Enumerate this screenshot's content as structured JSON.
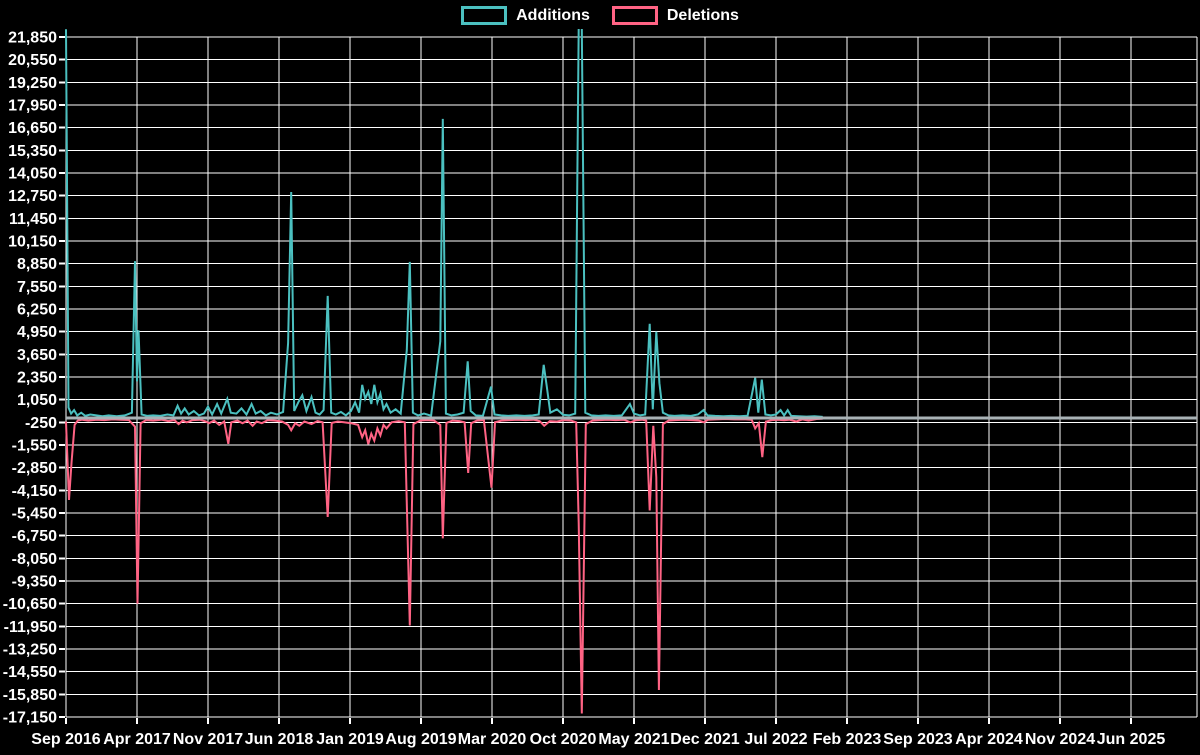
{
  "legend": {
    "position": "top",
    "items": [
      {
        "label": "Additions",
        "color": "#4BC0C0"
      },
      {
        "label": "Deletions",
        "color": "#FF6384"
      }
    ]
  },
  "chart_data": {
    "type": "line",
    "title": "",
    "xlabel": "",
    "ylabel": "",
    "background": "#000000",
    "grid_color": "#ffffff",
    "grid_on": true,
    "zero_line_color": "#a9b2b6",
    "x_axis": {
      "unit": "month",
      "tick_interval_months": 7,
      "tick_labels": [
        "Sep 2016",
        "Apr 2017",
        "Nov 2017",
        "Jun 2018",
        "Jan 2019",
        "Aug 2019",
        "Mar 2020",
        "Oct 2020",
        "May 2021",
        "Dec 2021",
        "Jul 2022",
        "Feb 2023",
        "Sep 2023",
        "Apr 2024",
        "Nov 2024",
        "Jun 2025"
      ]
    },
    "y_axis": {
      "max": 21850,
      "min": -17150,
      "step": 1300,
      "tick_labels": [
        "21,850",
        "20,550",
        "19,250",
        "17,950",
        "16,650",
        "15,350",
        "14,050",
        "12,750",
        "11,450",
        "10,150",
        "8,850",
        "7,550",
        "6,250",
        "4,950",
        "3,650",
        "2,350",
        "1,050",
        "-250",
        "-1,550",
        "-2,850",
        "-4,150",
        "-5,450",
        "-6,750",
        "-8,050",
        "-9,350",
        "-10,650",
        "-11,950",
        "-13,250",
        "-14,550",
        "-15,850",
        "-17,150"
      ]
    },
    "series": [
      {
        "name": "Deletions",
        "color": "#FF6384",
        "points": [
          [
            0,
            -200
          ],
          [
            0.3,
            -4700
          ],
          [
            0.55,
            -2500
          ],
          [
            0.85,
            -400
          ],
          [
            1.15,
            -150
          ],
          [
            1.6,
            -100
          ],
          [
            2.2,
            -150
          ],
          [
            3,
            -100
          ],
          [
            3.8,
            -120
          ],
          [
            4.6,
            -80
          ],
          [
            5.4,
            -100
          ],
          [
            6.2,
            -120
          ],
          [
            6.8,
            -500
          ],
          [
            7.05,
            -10650
          ],
          [
            7.35,
            -300
          ],
          [
            7.9,
            -120
          ],
          [
            8.6,
            -150
          ],
          [
            9.4,
            -100
          ],
          [
            10.1,
            -180
          ],
          [
            10.7,
            -120
          ],
          [
            11.1,
            -350
          ],
          [
            11.5,
            -150
          ],
          [
            11.9,
            -250
          ],
          [
            12.5,
            -120
          ],
          [
            13.2,
            -100
          ],
          [
            13.8,
            -200
          ],
          [
            14.1,
            -300
          ],
          [
            14.6,
            -150
          ],
          [
            15.1,
            -400
          ],
          [
            15.6,
            -200
          ],
          [
            16,
            -1480
          ],
          [
            16.3,
            -250
          ],
          [
            16.9,
            -150
          ],
          [
            17.4,
            -300
          ],
          [
            17.9,
            -150
          ],
          [
            18.4,
            -450
          ],
          [
            18.8,
            -200
          ],
          [
            19.3,
            -300
          ],
          [
            19.9,
            -120
          ],
          [
            20.6,
            -150
          ],
          [
            21.3,
            -200
          ],
          [
            21.9,
            -400
          ],
          [
            22.2,
            -700
          ],
          [
            22.6,
            -300
          ],
          [
            23,
            -450
          ],
          [
            23.5,
            -200
          ],
          [
            24.2,
            -350
          ],
          [
            24.8,
            -180
          ],
          [
            25.3,
            -250
          ],
          [
            25.8,
            -5680
          ],
          [
            26.2,
            -280
          ],
          [
            26.8,
            -200
          ],
          [
            27.4,
            -250
          ],
          [
            28.1,
            -300
          ],
          [
            28.8,
            -400
          ],
          [
            29.2,
            -1100
          ],
          [
            29.5,
            -700
          ],
          [
            29.8,
            -1500
          ],
          [
            30.1,
            -900
          ],
          [
            30.4,
            -1300
          ],
          [
            30.7,
            -600
          ],
          [
            31,
            -1000
          ],
          [
            31.3,
            -400
          ],
          [
            31.6,
            -600
          ],
          [
            32.1,
            -250
          ],
          [
            32.8,
            -180
          ],
          [
            33.4,
            -250
          ],
          [
            33.9,
            -11900
          ],
          [
            34.25,
            -350
          ],
          [
            34.9,
            -150
          ],
          [
            35.6,
            -120
          ],
          [
            36.3,
            -150
          ],
          [
            36.9,
            -400
          ],
          [
            37.15,
            -6900
          ],
          [
            37.5,
            -280
          ],
          [
            38.1,
            -150
          ],
          [
            38.8,
            -180
          ],
          [
            39.3,
            -250
          ],
          [
            39.65,
            -3150
          ],
          [
            39.95,
            -300
          ],
          [
            40.5,
            -150
          ],
          [
            41.2,
            -120
          ],
          [
            41.95,
            -4000
          ],
          [
            42.3,
            -250
          ],
          [
            42.9,
            -150
          ],
          [
            43.7,
            -120
          ],
          [
            44.5,
            -100
          ],
          [
            45.3,
            -120
          ],
          [
            46.1,
            -100
          ],
          [
            46.7,
            -180
          ],
          [
            47.15,
            -450
          ],
          [
            47.7,
            -180
          ],
          [
            48.4,
            -200
          ],
          [
            49.1,
            -120
          ],
          [
            49.8,
            -150
          ],
          [
            50.3,
            -250
          ],
          [
            50.55,
            -6000
          ],
          [
            50.85,
            -16950
          ],
          [
            51.25,
            -350
          ],
          [
            51.9,
            -150
          ],
          [
            52.6,
            -120
          ],
          [
            53.4,
            -100
          ],
          [
            54.2,
            -120
          ],
          [
            55,
            -100
          ],
          [
            55.65,
            -250
          ],
          [
            56.2,
            -130
          ],
          [
            56.8,
            -100
          ],
          [
            57.2,
            -150
          ],
          [
            57.55,
            -5300
          ],
          [
            57.9,
            -450
          ],
          [
            58.2,
            -3400
          ],
          [
            58.45,
            -15600
          ],
          [
            58.85,
            -350
          ],
          [
            59.4,
            -150
          ],
          [
            60.1,
            -120
          ],
          [
            60.9,
            -100
          ],
          [
            61.7,
            -120
          ],
          [
            62.4,
            -150
          ],
          [
            62.9,
            -250
          ],
          [
            63.3,
            -100
          ],
          [
            64.1,
            -80
          ],
          [
            65,
            -60
          ],
          [
            65.9,
            -80
          ],
          [
            66.8,
            -70
          ],
          [
            67.6,
            -100
          ],
          [
            67.95,
            -600
          ],
          [
            68.3,
            -300
          ],
          [
            68.65,
            -2250
          ],
          [
            69,
            -200
          ],
          [
            69.6,
            -120
          ],
          [
            70.2,
            -100
          ],
          [
            70.8,
            -130
          ],
          [
            71.3,
            -100
          ],
          [
            72,
            -200
          ],
          [
            72.6,
            -80
          ],
          [
            73.2,
            -150
          ],
          [
            74,
            -60
          ],
          [
            74.6,
            -40
          ]
        ]
      },
      {
        "name": "Additions",
        "color": "#4BC0C0",
        "points": [
          [
            0,
            22300
          ],
          [
            0.25,
            600
          ],
          [
            0.5,
            250
          ],
          [
            0.8,
            450
          ],
          [
            1.1,
            150
          ],
          [
            1.5,
            300
          ],
          [
            1.9,
            120
          ],
          [
            2.4,
            200
          ],
          [
            3,
            150
          ],
          [
            3.6,
            100
          ],
          [
            4.2,
            150
          ],
          [
            5,
            100
          ],
          [
            5.8,
            150
          ],
          [
            6.5,
            300
          ],
          [
            6.8,
            9000
          ],
          [
            7,
            2100
          ],
          [
            7.15,
            5030
          ],
          [
            7.45,
            200
          ],
          [
            8,
            120
          ],
          [
            8.6,
            150
          ],
          [
            9.3,
            120
          ],
          [
            10,
            200
          ],
          [
            10.6,
            150
          ],
          [
            11,
            700
          ],
          [
            11.35,
            250
          ],
          [
            11.7,
            550
          ],
          [
            12.1,
            200
          ],
          [
            12.6,
            400
          ],
          [
            13.1,
            150
          ],
          [
            13.6,
            250
          ],
          [
            14,
            650
          ],
          [
            14.4,
            200
          ],
          [
            14.9,
            800
          ],
          [
            15.3,
            250
          ],
          [
            15.9,
            1100
          ],
          [
            16.25,
            300
          ],
          [
            16.8,
            250
          ],
          [
            17.3,
            550
          ],
          [
            17.8,
            200
          ],
          [
            18.3,
            800
          ],
          [
            18.7,
            250
          ],
          [
            19.2,
            400
          ],
          [
            19.7,
            150
          ],
          [
            20.2,
            300
          ],
          [
            20.8,
            200
          ],
          [
            21.4,
            350
          ],
          [
            21.9,
            4300
          ],
          [
            22.2,
            12960
          ],
          [
            22.5,
            400
          ],
          [
            22.9,
            900
          ],
          [
            23.3,
            1300
          ],
          [
            23.7,
            400
          ],
          [
            24.2,
            1200
          ],
          [
            24.6,
            300
          ],
          [
            25,
            200
          ],
          [
            25.4,
            450
          ],
          [
            25.8,
            7000
          ],
          [
            26.15,
            300
          ],
          [
            26.6,
            200
          ],
          [
            27.1,
            350
          ],
          [
            27.6,
            150
          ],
          [
            28.1,
            400
          ],
          [
            28.5,
            900
          ],
          [
            28.9,
            300
          ],
          [
            29.2,
            1900
          ],
          [
            29.5,
            1100
          ],
          [
            29.8,
            1500
          ],
          [
            30.1,
            800
          ],
          [
            30.4,
            1900
          ],
          [
            30.7,
            900
          ],
          [
            31,
            1400
          ],
          [
            31.3,
            500
          ],
          [
            31.6,
            800
          ],
          [
            32,
            300
          ],
          [
            32.5,
            500
          ],
          [
            33,
            250
          ],
          [
            33.6,
            3900
          ],
          [
            33.9,
            8950
          ],
          [
            34.2,
            300
          ],
          [
            34.7,
            150
          ],
          [
            35.3,
            250
          ],
          [
            36,
            130
          ],
          [
            36.9,
            4400
          ],
          [
            37.15,
            17150
          ],
          [
            37.45,
            250
          ],
          [
            38,
            150
          ],
          [
            38.6,
            200
          ],
          [
            39.2,
            300
          ],
          [
            39.6,
            3250
          ],
          [
            39.9,
            400
          ],
          [
            40.4,
            150
          ],
          [
            41.1,
            120
          ],
          [
            41.9,
            1800
          ],
          [
            42.25,
            200
          ],
          [
            42.9,
            150
          ],
          [
            43.6,
            120
          ],
          [
            44.4,
            150
          ],
          [
            45.2,
            120
          ],
          [
            46,
            150
          ],
          [
            46.6,
            200
          ],
          [
            47.1,
            3050
          ],
          [
            47.4,
            1800
          ],
          [
            47.75,
            300
          ],
          [
            48.4,
            500
          ],
          [
            49,
            180
          ],
          [
            49.6,
            150
          ],
          [
            50.2,
            250
          ],
          [
            50.55,
            22400
          ],
          [
            50.85,
            22400
          ],
          [
            51.2,
            300
          ],
          [
            51.8,
            150
          ],
          [
            52.5,
            120
          ],
          [
            53.2,
            150
          ],
          [
            54,
            120
          ],
          [
            54.8,
            150
          ],
          [
            55.6,
            800
          ],
          [
            56,
            250
          ],
          [
            56.6,
            150
          ],
          [
            57.1,
            200
          ],
          [
            57.55,
            5400
          ],
          [
            57.85,
            500
          ],
          [
            58.2,
            4950
          ],
          [
            58.5,
            2000
          ],
          [
            58.85,
            300
          ],
          [
            59.4,
            150
          ],
          [
            60,
            120
          ],
          [
            60.8,
            150
          ],
          [
            61.6,
            120
          ],
          [
            62.3,
            200
          ],
          [
            62.85,
            450
          ],
          [
            63.25,
            150
          ],
          [
            64,
            120
          ],
          [
            64.8,
            100
          ],
          [
            65.6,
            120
          ],
          [
            66.4,
            100
          ],
          [
            67.2,
            130
          ],
          [
            67.95,
            2300
          ],
          [
            68.25,
            300
          ],
          [
            68.6,
            2200
          ],
          [
            68.95,
            200
          ],
          [
            69.5,
            150
          ],
          [
            70,
            200
          ],
          [
            70.45,
            450
          ],
          [
            70.8,
            150
          ],
          [
            71.15,
            450
          ],
          [
            71.5,
            120
          ],
          [
            72.2,
            100
          ],
          [
            73,
            80
          ],
          [
            73.8,
            100
          ],
          [
            74.6,
            60
          ]
        ]
      }
    ]
  }
}
